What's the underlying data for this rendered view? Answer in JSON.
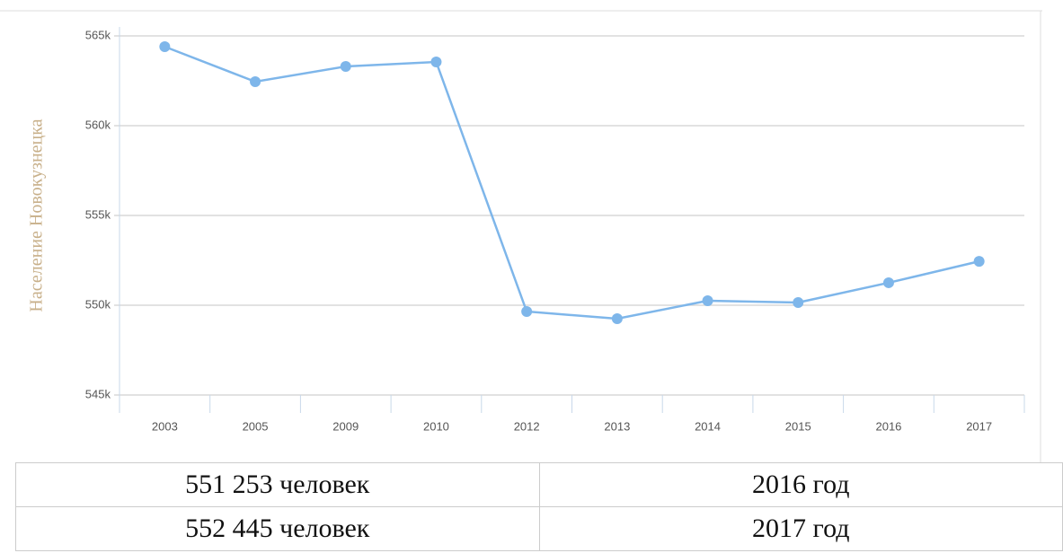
{
  "chart_data": {
    "type": "line",
    "y_label": "Население Новокузнецка",
    "categories": [
      "2003",
      "2005",
      "2009",
      "2010",
      "2012",
      "2013",
      "2014",
      "2015",
      "2016",
      "2017"
    ],
    "values": [
      564400,
      562450,
      563300,
      563550,
      549650,
      549250,
      550250,
      550150,
      551253,
      552445
    ],
    "color": "#7eb6ea",
    "ylim": [
      545000,
      565000
    ],
    "yticks": [
      {
        "value": 545000,
        "label": "545k"
      },
      {
        "value": 550000,
        "label": "550k"
      },
      {
        "value": 555000,
        "label": "555k"
      },
      {
        "value": 560000,
        "label": "560k"
      },
      {
        "value": 565000,
        "label": "565k"
      }
    ],
    "grid": true
  },
  "table": {
    "rows": [
      [
        "551 253 человек",
        "2016 год"
      ],
      [
        "552 445 человек",
        "2017 год"
      ]
    ]
  }
}
